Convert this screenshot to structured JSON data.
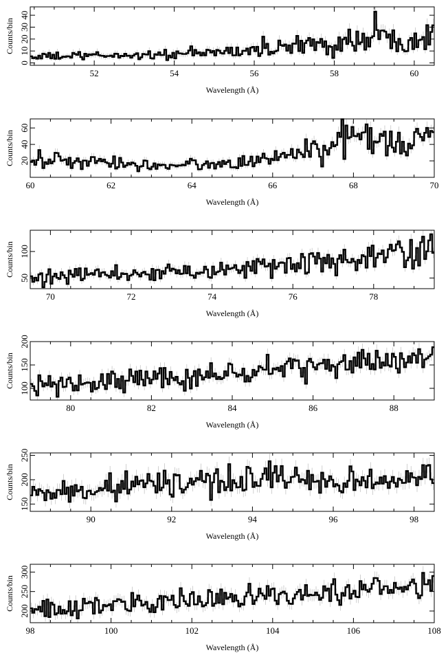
{
  "chart_data": [
    {
      "type": "line",
      "xlabel": "Wavelength (Å)",
      "ylabel": "Counts/bin",
      "xlim": [
        50.4,
        60.5
      ],
      "ylim": [
        -2,
        47
      ],
      "xticks": [
        52,
        54,
        56,
        58,
        60
      ],
      "yticks": [
        0,
        10,
        20,
        30,
        40
      ],
      "anchors": [
        [
          50.4,
          5
        ],
        [
          52.0,
          6
        ],
        [
          54.0,
          7
        ],
        [
          55.0,
          9
        ],
        [
          56.0,
          10
        ],
        [
          57.0,
          14
        ],
        [
          58.0,
          16
        ],
        [
          59.0,
          20
        ],
        [
          60.0,
          22
        ],
        [
          60.5,
          24
        ]
      ],
      "jitter": 0.3,
      "spikes": [
        [
          59.02,
          43
        ],
        [
          58.4,
          28
        ],
        [
          56.2,
          22
        ]
      ],
      "bins": 202
    },
    {
      "type": "line",
      "xlabel": "Wavelength (Å)",
      "ylabel": "Counts/bin",
      "xlim": [
        60,
        70
      ],
      "ylim": [
        0,
        71
      ],
      "xticks": [
        60,
        62,
        64,
        66,
        68,
        70
      ],
      "yticks": [
        20,
        40,
        60
      ],
      "anchors": [
        [
          60.0,
          22
        ],
        [
          61.0,
          19
        ],
        [
          62.0,
          17
        ],
        [
          63.0,
          15
        ],
        [
          64.0,
          15
        ],
        [
          64.5,
          16
        ],
        [
          65.0,
          17
        ],
        [
          66.0,
          23
        ],
        [
          67.0,
          32
        ],
        [
          67.8,
          42
        ],
        [
          68.0,
          46
        ],
        [
          69.0,
          46
        ],
        [
          70.0,
          48
        ]
      ],
      "jitter": 0.25,
      "spikes": [
        [
          67.85,
          63
        ],
        [
          68.4,
          60
        ],
        [
          69.6,
          59
        ]
      ],
      "bins": 200
    },
    {
      "type": "line",
      "xlabel": "Wavelength (Å)",
      "ylabel": "Counts/bin",
      "xlim": [
        69.5,
        79.5
      ],
      "ylim": [
        30,
        140
      ],
      "xticks": [
        70,
        72,
        74,
        76,
        78
      ],
      "yticks": [
        50,
        100
      ],
      "anchors": [
        [
          69.5,
          48
        ],
        [
          70.0,
          50
        ],
        [
          71.0,
          55
        ],
        [
          72.0,
          58
        ],
        [
          73.0,
          62
        ],
        [
          74.0,
          66
        ],
        [
          75.0,
          70
        ],
        [
          76.0,
          76
        ],
        [
          77.0,
          80
        ],
        [
          78.0,
          88
        ],
        [
          79.0,
          98
        ],
        [
          79.5,
          102
        ]
      ],
      "jitter": 0.14,
      "spikes": [
        [
          79.2,
          128
        ],
        [
          78.9,
          122
        ]
      ],
      "bins": 200
    },
    {
      "type": "line",
      "xlabel": "Wavelength (Å)",
      "ylabel": "Counts/bin",
      "xlim": [
        79,
        89
      ],
      "ylim": [
        75,
        200
      ],
      "xticks": [
        80,
        82,
        84,
        86,
        88
      ],
      "yticks": [
        100,
        150,
        200
      ],
      "anchors": [
        [
          79.0,
          102
        ],
        [
          80.0,
          108
        ],
        [
          81.0,
          116
        ],
        [
          82.0,
          120
        ],
        [
          83.0,
          126
        ],
        [
          84.0,
          132
        ],
        [
          85.0,
          138
        ],
        [
          86.0,
          145
        ],
        [
          87.0,
          152
        ],
        [
          88.0,
          160
        ],
        [
          89.0,
          176
        ]
      ],
      "jitter": 0.1,
      "spikes": [
        [
          84.88,
          172
        ],
        [
          85.5,
          162
        ],
        [
          88.95,
          188
        ],
        [
          79.2,
          128
        ]
      ],
      "bins": 200
    },
    {
      "type": "line",
      "xlabel": "Wavelength (Å)",
      "ylabel": "Counts/bin",
      "xlim": [
        88.5,
        98.5
      ],
      "ylim": [
        135,
        255
      ],
      "xticks": [
        90,
        92,
        94,
        96,
        98
      ],
      "yticks": [
        150,
        200,
        250
      ],
      "anchors": [
        [
          88.5,
          165
        ],
        [
          89.0,
          170
        ],
        [
          89.5,
          175
        ],
        [
          90.0,
          180
        ],
        [
          90.5,
          186
        ],
        [
          91.0,
          190
        ],
        [
          92.0,
          192
        ],
        [
          93.0,
          195
        ],
        [
          94.0,
          200
        ],
        [
          94.5,
          205
        ],
        [
          95.0,
          200
        ],
        [
          96.0,
          195
        ],
        [
          97.0,
          195
        ],
        [
          98.0,
          200
        ],
        [
          98.5,
          205
        ]
      ],
      "jitter": 0.07,
      "spikes": [
        [
          94.4,
          238
        ],
        [
          94.7,
          228
        ],
        [
          93.4,
          232
        ],
        [
          98.2,
          230
        ],
        [
          95.1,
          225
        ]
      ],
      "bins": 200
    },
    {
      "type": "line",
      "xlabel": "Wavelength (Å)",
      "ylabel": "Counts/bin",
      "xlim": [
        98,
        108
      ],
      "ylim": [
        170,
        320
      ],
      "xticks": [
        98,
        100,
        102,
        104,
        106,
        108
      ],
      "yticks": [
        200,
        250,
        300
      ],
      "anchors": [
        [
          98.0,
          205
        ],
        [
          99.0,
          208
        ],
        [
          100.0,
          213
        ],
        [
          101.0,
          220
        ],
        [
          102.0,
          226
        ],
        [
          103.0,
          232
        ],
        [
          104.0,
          238
        ],
        [
          105.0,
          245
        ],
        [
          106.0,
          250
        ],
        [
          107.0,
          258
        ],
        [
          107.8,
          268
        ],
        [
          108.0,
          272
        ]
      ],
      "jitter": 0.06,
      "spikes": [
        [
          105.5,
          282
        ],
        [
          107.7,
          298
        ],
        [
          103.4,
          270
        ]
      ],
      "bins": 200
    }
  ]
}
